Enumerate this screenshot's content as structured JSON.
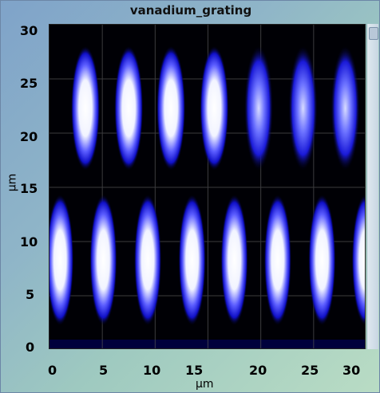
{
  "window": {
    "title": "vanadium_grating"
  },
  "axes": {
    "xlabel": "µm",
    "ylabel": "µm",
    "xticks": [
      "0",
      "5",
      "10",
      "15",
      "20",
      "25",
      "30"
    ],
    "yticks": [
      "30",
      "25",
      "20",
      "15",
      "10",
      "5",
      "0"
    ]
  },
  "image": {
    "colormap": [
      "#000000",
      "#0000ff",
      "#ffffff"
    ],
    "extent_um": [
      0,
      30,
      0,
      30
    ],
    "top_row_center_um": [
      3.4,
      7.5,
      11.5,
      15.6,
      19.8,
      24.0,
      28.0
    ],
    "top_row_y_um": 22.3,
    "bottom_row_center_um": [
      1.0,
      5.1,
      9.3,
      13.5,
      17.5,
      21.6,
      25.8,
      29.9
    ],
    "bottom_row_y_um": 8.3
  },
  "scrollbar": {
    "label": ""
  }
}
